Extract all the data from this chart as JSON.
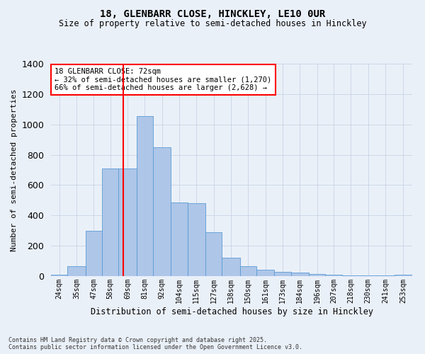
{
  "title_line1": "18, GLENBARR CLOSE, HINCKLEY, LE10 0UR",
  "title_line2": "Size of property relative to semi-detached houses in Hinckley",
  "xlabel": "Distribution of semi-detached houses by size in Hinckley",
  "ylabel": "Number of semi-detached properties",
  "footnote_line1": "Contains HM Land Registry data © Crown copyright and database right 2025.",
  "footnote_line2": "Contains public sector information licensed under the Open Government Licence v3.0.",
  "annotation_title": "18 GLENBARR CLOSE: 72sqm",
  "annotation_line1": "← 32% of semi-detached houses are smaller (1,270)",
  "annotation_line2": "66% of semi-detached houses are larger (2,628) →",
  "property_size": 72,
  "bar_color": "#aec6e8",
  "bar_edge_color": "#5b9bd5",
  "ref_line_color": "red",
  "background_color": "#eaf0f8",
  "categories": [
    "24sqm",
    "35sqm",
    "47sqm",
    "58sqm",
    "69sqm",
    "81sqm",
    "92sqm",
    "104sqm",
    "115sqm",
    "127sqm",
    "138sqm",
    "150sqm",
    "161sqm",
    "173sqm",
    "184sqm",
    "196sqm",
    "207sqm",
    "218sqm",
    "230sqm",
    "241sqm",
    "253sqm"
  ],
  "bin_edges": [
    24,
    35,
    47,
    58,
    69,
    81,
    92,
    104,
    115,
    127,
    138,
    150,
    161,
    173,
    184,
    196,
    207,
    218,
    230,
    241,
    253,
    265
  ],
  "values": [
    10,
    65,
    300,
    710,
    710,
    1055,
    850,
    485,
    480,
    290,
    120,
    65,
    40,
    30,
    25,
    15,
    10,
    5,
    5,
    5,
    10
  ],
  "ylim": [
    0,
    1400
  ],
  "yticks": [
    0,
    200,
    400,
    600,
    800,
    1000,
    1200,
    1400
  ],
  "annotation_box_color": "white",
  "annotation_box_edge": "red",
  "grid_color": "#c8d4e4"
}
